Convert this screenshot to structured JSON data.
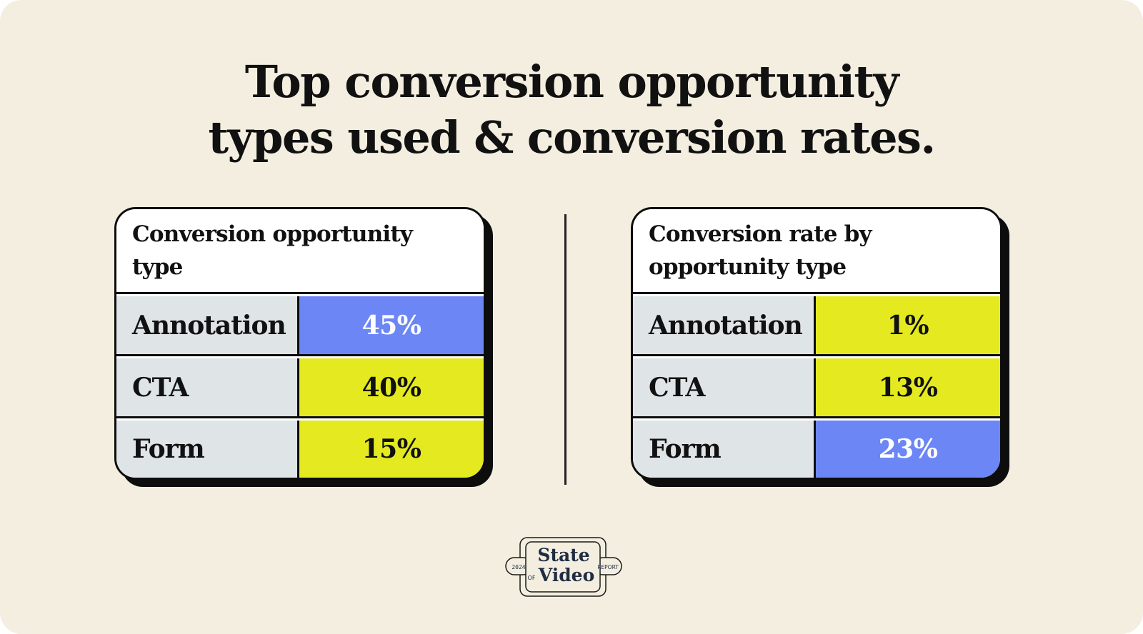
{
  "headline": {
    "line1": "Top conversion opportunity",
    "line2": "types used & conversion rates."
  },
  "colors": {
    "background": "#f3eedf",
    "label_cell": "#dfe4e6",
    "highlight_blue": "#6c86f5",
    "highlight_yellow": "#e4ea1f",
    "ink": "#0d0d0d"
  },
  "chart_data": [
    {
      "type": "table",
      "title_lines": [
        "Conversion opportunity type"
      ],
      "categories": [
        "Annotation",
        "CTA",
        "Form"
      ],
      "values": [
        45,
        40,
        15
      ],
      "value_labels": [
        "45%",
        "40%",
        "15%"
      ],
      "cell_colors": [
        "#6c86f5",
        "#e4ea1f",
        "#e4ea1f"
      ],
      "value_text_colors": [
        "#ffffff",
        "#111111",
        "#111111"
      ]
    },
    {
      "type": "table",
      "title_lines": [
        "Conversion rate by",
        "opportunity type"
      ],
      "categories": [
        "Annotation",
        "CTA",
        "Form"
      ],
      "values": [
        1,
        13,
        23
      ],
      "value_labels": [
        "1%",
        "13%",
        "23%"
      ],
      "cell_colors": [
        "#e4ea1f",
        "#e4ea1f",
        "#6c86f5"
      ],
      "value_text_colors": [
        "#111111",
        "#111111",
        "#ffffff"
      ]
    }
  ],
  "logo": {
    "line1": "State",
    "line2": "Video",
    "of": "OF",
    "year": "2024",
    "report": "REPORT"
  }
}
